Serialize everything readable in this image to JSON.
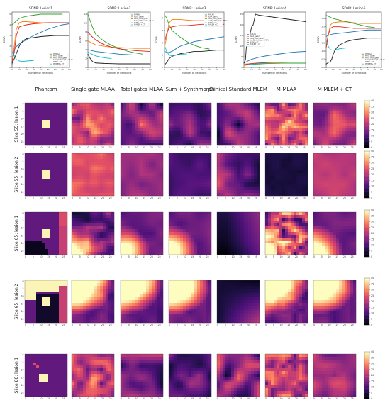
{
  "figure": {
    "column_headers": [
      "Phantom",
      "Single gate MLAA",
      "Total gates MLAA",
      "Sum + Synthmorph",
      "Clinical Standard MLEM",
      "M-MLAA",
      "M-MLEM + CT"
    ],
    "row_labels": [
      "Slice 55: lesion 1",
      "Slice 55: lesion 2",
      "Slice 65: lesion 1",
      "Slice 65: lesion 2",
      "Slice 80: lesion 1"
    ],
    "map_ticks": [
      "0",
      "5",
      "10",
      "15",
      "20",
      "25"
    ],
    "colorbar_ticks": [
      [
        "0",
        "5",
        "10",
        "15",
        "20",
        "25",
        "30",
        "35",
        "40"
      ],
      [
        "0",
        "5",
        "10",
        "15",
        "20",
        "25",
        "30",
        "35",
        "40"
      ],
      [
        "0",
        "5",
        "10",
        "15",
        "20",
        "25",
        "30",
        "35",
        "40"
      ],
      [
        "0",
        "5",
        "10",
        "15",
        "20",
        "25",
        "30",
        "35",
        "40"
      ],
      [
        "0",
        "5",
        "10",
        "15",
        "20",
        "25",
        "30",
        "35",
        "40"
      ]
    ],
    "colormap": "magma",
    "colors": {
      "black": "#000004",
      "purple": "#51127c",
      "magenta": "#b73779",
      "orange": "#fc8961",
      "pale": "#fcfdbf",
      "inactive": "#7c5a95"
    }
  },
  "chart_data": [
    {
      "type": "line",
      "title": "SDNR: Lesion1",
      "xlabel": "number of iterations",
      "ylabel": "SDNR",
      "xlim": [
        0,
        80
      ],
      "ylim": [
        0,
        5.2
      ],
      "xticks": [
        "0",
        "10",
        "20",
        "30",
        "40",
        "50",
        "60",
        "70",
        "80"
      ],
      "yticks": [
        "0",
        "1",
        "2",
        "3",
        "4",
        "5"
      ],
      "legend_position": "bottom-right",
      "series": [
        {
          "name": "M-MLAA",
          "color": "#1f77b4",
          "x": [
            0,
            2,
            5,
            10,
            20,
            30,
            40,
            50,
            60,
            70,
            80
          ],
          "y": [
            0.2,
            1.4,
            1.9,
            2.2,
            2.6,
            3.0,
            3.3,
            3.6,
            3.8,
            4.0,
            4.1
          ]
        },
        {
          "name": "MLAA_gated",
          "color": "#ff7f0e",
          "x": [
            0,
            3,
            6,
            10,
            15,
            20,
            30,
            40,
            50,
            60
          ],
          "y": [
            0.5,
            2.0,
            3.6,
            4.2,
            4.3,
            4.3,
            4.25,
            4.2,
            4.2,
            4.2
          ]
        },
        {
          "name": "MLAA_total_gates",
          "color": "#2ca02c",
          "x": [
            0,
            5,
            10,
            20,
            30,
            40,
            50,
            60,
            70
          ],
          "y": [
            4.0,
            4.3,
            4.6,
            4.8,
            4.9,
            5.0,
            5.0,
            5.0,
            5.0
          ]
        },
        {
          "name": "SumSynthmorph + MLAA",
          "color": "#d62728",
          "x": [
            0,
            3,
            6,
            10,
            20,
            30,
            40,
            50,
            60,
            70,
            80
          ],
          "y": [
            0.5,
            1.4,
            3.0,
            3.8,
            4.0,
            4.1,
            4.15,
            4.2,
            4.2,
            4.2,
            4.2
          ]
        },
        {
          "name": "MLEM + CT",
          "color": "#222222",
          "x": [
            0,
            3,
            6,
            10,
            15,
            20,
            30,
            40,
            50,
            60,
            70,
            80
          ],
          "y": [
            0.4,
            0.8,
            1.3,
            2.0,
            2.5,
            2.7,
            2.8,
            2.9,
            2.95,
            3.0,
            3.0,
            3.0
          ]
        },
        {
          "name": "M-MLEM + CT",
          "color": "#17becf",
          "x": [
            0,
            3,
            6,
            10,
            15,
            20,
            30
          ],
          "y": [
            1.5,
            1.1,
            0.75,
            0.6,
            0.55,
            0.6,
            0.65
          ]
        }
      ]
    },
    {
      "type": "line",
      "title": "SDNR: Lesion2",
      "xlabel": "number of iterations",
      "ylabel": "SDNR",
      "xlim": [
        0,
        80
      ],
      "ylim": [
        0,
        12.5
      ],
      "xticks": [
        "0",
        "10",
        "20",
        "30",
        "40",
        "50",
        "60",
        "70",
        "80"
      ],
      "yticks": [
        "0",
        "2",
        "4",
        "6",
        "8",
        "10",
        "12"
      ],
      "legend_position": "top-right",
      "series": [
        {
          "name": "M-MLAA",
          "color": "#1f77b4",
          "x": [
            0,
            5,
            10,
            20,
            30,
            40,
            50,
            60,
            70,
            80
          ],
          "y": [
            4.0,
            3.8,
            3.6,
            3.4,
            3.2,
            3.0,
            2.9,
            2.8,
            2.8,
            2.8
          ]
        },
        {
          "name": "MLAA_gated",
          "color": "#ff7f0e",
          "x": [
            0,
            5,
            10,
            20,
            30,
            40,
            50,
            60,
            70,
            80
          ],
          "y": [
            6.0,
            5.5,
            5.1,
            4.8,
            4.6,
            4.5,
            4.4,
            4.3,
            4.3,
            4.3
          ]
        },
        {
          "name": "MLAA_total_gates",
          "color": "#2ca02c",
          "x": [
            0,
            3,
            6,
            10,
            20,
            30,
            40,
            50,
            60,
            70
          ],
          "y": [
            12.0,
            10.5,
            9.0,
            7.5,
            6.0,
            5.0,
            4.3,
            3.7,
            3.3,
            3.0
          ]
        },
        {
          "name": "SumSynthmorph + MLAA",
          "color": "#d62728",
          "x": [
            0,
            5,
            10,
            20,
            30,
            40,
            50,
            60,
            70,
            80
          ],
          "y": [
            8.0,
            7.0,
            6.2,
            5.2,
            4.6,
            4.2,
            4.0,
            3.8,
            3.7,
            3.6
          ]
        },
        {
          "name": "MLEM + CT",
          "color": "#222222",
          "x": [
            0,
            3,
            6,
            10,
            20,
            30,
            40,
            50,
            60,
            70,
            80
          ],
          "y": [
            3.0,
            2.0,
            1.3,
            1.0,
            0.9,
            0.85,
            0.8,
            0.8,
            0.8,
            0.8,
            0.8
          ]
        },
        {
          "name": "M-MLEM + CT",
          "color": "#17becf",
          "x": [
            0,
            5,
            10,
            20,
            30
          ],
          "y": [
            3.5,
            3.0,
            2.6,
            2.2,
            2.0
          ]
        }
      ]
    },
    {
      "type": "line",
      "title": "SDNR: Lesion3",
      "xlabel": "number of iterations",
      "ylabel": "SDNR",
      "xlim": [
        0,
        80
      ],
      "ylim": [
        0,
        4.5
      ],
      "xticks": [
        "0",
        "10",
        "20",
        "30",
        "40",
        "50",
        "60",
        "70",
        "80"
      ],
      "yticks": [
        "0",
        "1",
        "2",
        "3",
        "4"
      ],
      "legend_position": "top-right",
      "series": [
        {
          "name": "M-MLAA",
          "color": "#1f77b4",
          "x": [
            0,
            5,
            10,
            15,
            20,
            30,
            40,
            50,
            60,
            70,
            80
          ],
          "y": [
            1.3,
            1.2,
            1.3,
            1.5,
            1.7,
            1.9,
            2.1,
            2.2,
            2.3,
            2.4,
            2.5
          ]
        },
        {
          "name": "MLAA_gated",
          "color": "#ff7f0e",
          "x": [
            0,
            3,
            6,
            10,
            20,
            30,
            40,
            50,
            60,
            70,
            80
          ],
          "y": [
            1.6,
            2.5,
            3.6,
            3.9,
            3.9,
            3.85,
            3.8,
            3.8,
            3.8,
            3.8,
            3.8
          ]
        },
        {
          "name": "MLAA_total_gates",
          "color": "#2ca02c",
          "x": [
            0,
            3,
            6,
            10,
            20,
            30,
            40,
            50,
            60
          ],
          "y": [
            4.3,
            4.0,
            3.5,
            3.0,
            2.5,
            2.1,
            1.8,
            1.6,
            1.5
          ]
        },
        {
          "name": "SumSynthmorph + MLAA",
          "color": "#d62728",
          "x": [
            0,
            3,
            6,
            10,
            20,
            30,
            40,
            50,
            60,
            70,
            80
          ],
          "y": [
            2.0,
            2.8,
            3.2,
            3.3,
            3.4,
            3.4,
            3.45,
            3.5,
            3.5,
            3.5,
            3.5
          ]
        },
        {
          "name": "MLEM + CT",
          "color": "#222222",
          "x": [
            0,
            3,
            6,
            10,
            20,
            30,
            40,
            50,
            60,
            70,
            80
          ],
          "y": [
            0.2,
            0.4,
            0.7,
            0.9,
            1.1,
            1.2,
            1.3,
            1.3,
            1.35,
            1.4,
            1.4
          ]
        },
        {
          "name": "M-MLEM + CT",
          "color": "#17becf",
          "x": [
            0,
            3,
            6,
            10,
            15,
            20,
            30
          ],
          "y": [
            1.8,
            1.3,
            1.0,
            0.95,
            1.0,
            1.05,
            1.1
          ]
        }
      ]
    },
    {
      "type": "line",
      "title": "SDNR: Lesion4",
      "xlabel": "number of iterations",
      "ylabel": "SDNR",
      "xlim": [
        0,
        80
      ],
      "ylim": [
        0,
        26
      ],
      "xticks": [
        "0",
        "10",
        "20",
        "30",
        "40",
        "50",
        "60",
        "70",
        "80"
      ],
      "yticks": [
        "0",
        "5",
        "10",
        "15",
        "20",
        "25"
      ],
      "legend_position": "center-left",
      "series": [
        {
          "name": "M-MLAA",
          "color": "#1f77b4",
          "x": [
            0,
            5,
            10,
            20,
            30,
            40,
            50,
            60,
            70,
            80
          ],
          "y": [
            2.0,
            3.0,
            3.8,
            4.8,
            5.5,
            6.0,
            6.5,
            7.0,
            7.3,
            7.5
          ]
        },
        {
          "name": "MLAA_gated",
          "color": "#ff7f0e",
          "x": [
            0,
            10,
            20,
            30,
            40,
            50,
            60,
            70,
            80
          ],
          "y": [
            1.5,
            1.8,
            2.0,
            2.2,
            2.3,
            2.4,
            2.5,
            2.5,
            2.5
          ]
        },
        {
          "name": "MLAA_total_gates",
          "color": "#2ca02c",
          "x": [
            0,
            10,
            20,
            30,
            40,
            50,
            60,
            70,
            80
          ],
          "y": [
            1.0,
            1.4,
            1.6,
            1.8,
            1.9,
            2.0,
            2.0,
            2.0,
            2.0
          ]
        },
        {
          "name": "SumSynthmorph + MLAA",
          "color": "#d62728",
          "x": [
            0,
            10,
            20,
            30,
            40,
            50,
            60,
            70,
            80
          ],
          "y": [
            1.2,
            1.8,
            2.1,
            2.3,
            2.4,
            2.5,
            2.5,
            2.5,
            2.5
          ]
        },
        {
          "name": "MLEM + CT",
          "color": "#222222",
          "x": [
            0,
            2,
            4,
            6,
            8,
            10,
            12,
            15,
            20,
            30,
            40,
            50,
            60,
            70,
            80
          ],
          "y": [
            2.0,
            3.5,
            14.0,
            15.0,
            16.0,
            19.0,
            20.0,
            25.0,
            24.5,
            24.0,
            23.5,
            23.0,
            22.5,
            22.0,
            21.5
          ]
        },
        {
          "name": "M-MLEM + CT",
          "color": "#17becf",
          "x": [
            0,
            5,
            10,
            20,
            30
          ],
          "y": [
            1.0,
            1.2,
            1.5,
            1.8,
            2.0
          ]
        }
      ]
    },
    {
      "type": "line",
      "title": "SDNR: Lesion5",
      "xlabel": "number of iterations",
      "ylabel": "SDNR",
      "xlim": [
        0,
        80
      ],
      "ylim": [
        0,
        3.4
      ],
      "xticks": [
        "0",
        "10",
        "20",
        "30",
        "40",
        "50",
        "60",
        "70",
        "80"
      ],
      "yticks": [
        "0.0",
        "0.5",
        "1.0",
        "1.5",
        "2.0",
        "2.5",
        "3.0"
      ],
      "legend_position": "bottom-right",
      "series": [
        {
          "name": "M-MLAA",
          "color": "#1f77b4",
          "x": [
            0,
            5,
            10,
            20,
            30,
            40,
            50,
            60,
            70,
            80
          ],
          "y": [
            1.9,
            2.0,
            2.05,
            2.1,
            2.15,
            2.2,
            2.25,
            2.3,
            2.3,
            2.3
          ]
        },
        {
          "name": "MLAA_gated",
          "color": "#ff7f0e",
          "x": [
            0,
            3,
            6,
            10,
            20,
            30,
            40,
            50,
            60,
            70,
            80
          ],
          "y": [
            1.4,
            2.0,
            2.6,
            2.75,
            2.8,
            2.8,
            2.75,
            2.7,
            2.7,
            2.7,
            2.7
          ]
        },
        {
          "name": "MLAA_total_gates",
          "color": "#2ca02c",
          "x": [
            0,
            5,
            10,
            20,
            30,
            40,
            50,
            60,
            70
          ],
          "y": [
            3.2,
            3.1,
            3.0,
            2.9,
            2.8,
            2.7,
            2.6,
            2.5,
            2.45
          ]
        },
        {
          "name": "SumSynthmorph + MLAA",
          "color": "#d62728",
          "x": [
            0,
            3,
            6,
            10,
            20,
            30,
            40,
            50,
            60,
            70,
            80
          ],
          "y": [
            1.2,
            2.0,
            2.4,
            2.5,
            2.5,
            2.45,
            2.4,
            2.4,
            2.4,
            2.4,
            2.4
          ]
        },
        {
          "name": "MLEM + CT",
          "color": "#222222",
          "x": [
            0,
            3,
            6,
            8,
            10,
            12,
            15,
            20,
            30,
            40,
            50,
            60,
            70,
            80
          ],
          "y": [
            0.2,
            0.3,
            0.35,
            0.5,
            0.8,
            1.0,
            1.2,
            1.4,
            1.6,
            1.7,
            1.75,
            1.8,
            1.8,
            1.8
          ]
        },
        {
          "name": "M-MLEM + CT",
          "color": "#17becf",
          "x": [
            0,
            3,
            6,
            10,
            15,
            20,
            30
          ],
          "y": [
            1.6,
            1.3,
            1.1,
            1.05,
            1.1,
            1.15,
            1.2
          ]
        }
      ]
    }
  ]
}
